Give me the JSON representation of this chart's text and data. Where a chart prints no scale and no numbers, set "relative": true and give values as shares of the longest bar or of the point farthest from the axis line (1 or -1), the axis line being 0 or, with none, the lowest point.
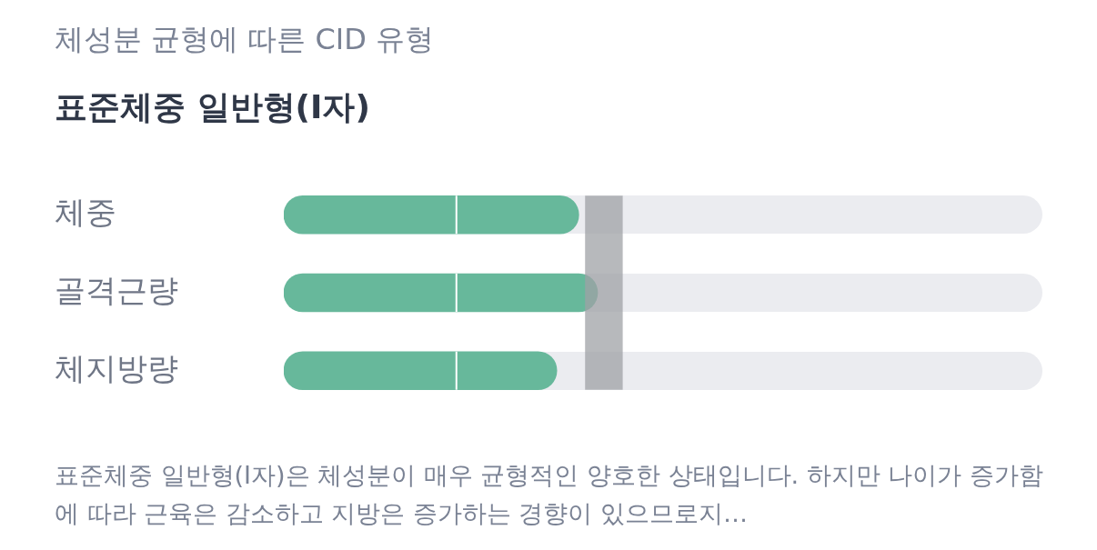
{
  "chart_data": {
    "type": "bar",
    "orientation": "horizontal",
    "relative": true,
    "subtitle": "체성분 균형에 따른 CID 유형",
    "title": "표준체중 일반형(I자)",
    "categories": [
      "체중",
      "골격근량",
      "체지방량"
    ],
    "series": [
      {
        "color": "#67b89b",
        "values": [
          0.94,
          1,
          0.87
        ]
      }
    ],
    "bands": [
      {
        "axis": "x",
        "from": 0.96,
        "to": 1.08,
        "color": "#9fa1a6"
      }
    ],
    "ref_lines": [
      {
        "axis": "x",
        "value": 0.55,
        "color": "#ffffff"
      }
    ],
    "annotations": [
      "표준체중 일반형(I자)은 체성분이 매우 균형적인 양호한 상태입니다. 하지만 나이가 증가함에 따라 근육은 감소하고 지방은 증가하는 경향이 있으므로지…"
    ],
    "grid": false,
    "legend": false
  }
}
